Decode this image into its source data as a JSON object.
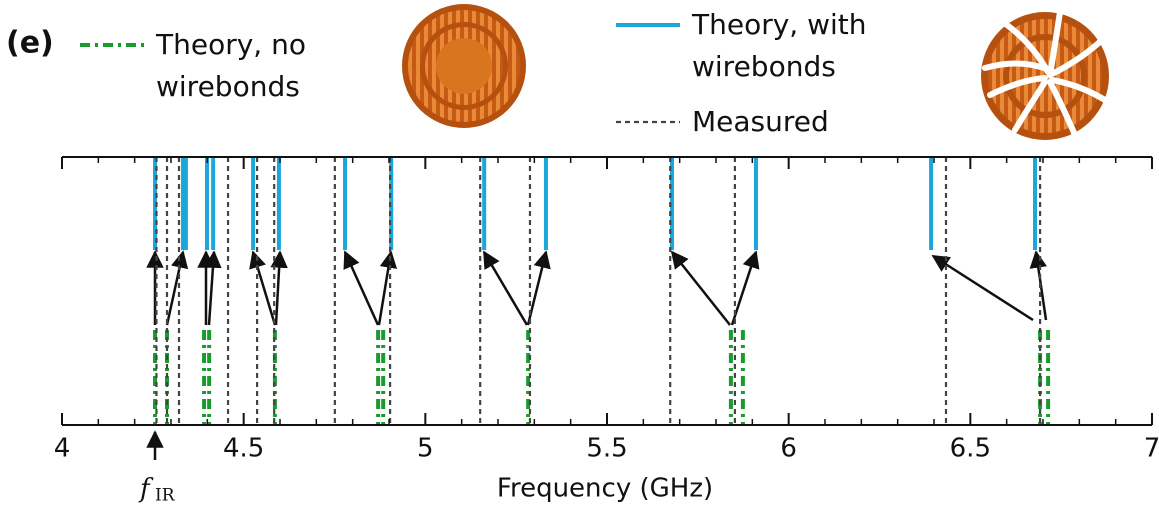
{
  "chart_data": {
    "type": "vline",
    "panel_label": "(e)",
    "xlabel": "Frequency (GHz)",
    "xlim": [
      4,
      7
    ],
    "xticks": [
      4,
      4.5,
      5,
      5.5,
      6,
      6.5,
      7
    ],
    "xminorticks": [
      4.1,
      4.2,
      4.3,
      4.4,
      4.6,
      4.7,
      4.8,
      4.9,
      5.1,
      5.2,
      5.3,
      5.4,
      5.6,
      5.7,
      5.8,
      5.9,
      6.1,
      6.2,
      6.3,
      6.4,
      6.6,
      6.7,
      6.8,
      6.9
    ],
    "series": [
      {
        "name": "Theory, no wirebonds",
        "color": "#1a9b2e",
        "linestyle": "dashdot",
        "values": [
          4.256,
          4.289,
          4.391,
          4.405,
          4.586,
          4.87,
          4.884,
          5.283,
          5.841,
          5.874,
          6.692,
          6.714
        ]
      },
      {
        "name": "Theory, with wirebonds",
        "color": "#1ba6dc",
        "linestyle": "solid",
        "values": [
          4.256,
          4.333,
          4.341,
          4.399,
          4.416,
          4.526,
          4.597,
          4.779,
          4.906,
          5.162,
          5.332,
          5.679,
          5.91,
          6.392,
          6.678
        ]
      },
      {
        "name": "Measured",
        "color": "#444444",
        "linestyle": "dashed",
        "values": [
          4.26,
          4.289,
          4.322,
          4.457,
          4.537,
          4.584,
          4.751,
          4.903,
          5.151,
          5.288,
          5.674,
          5.852,
          6.433,
          6.692
        ]
      }
    ],
    "annotations": [
      {
        "text": "f",
        "subscript": "IR"
      }
    ]
  }
}
